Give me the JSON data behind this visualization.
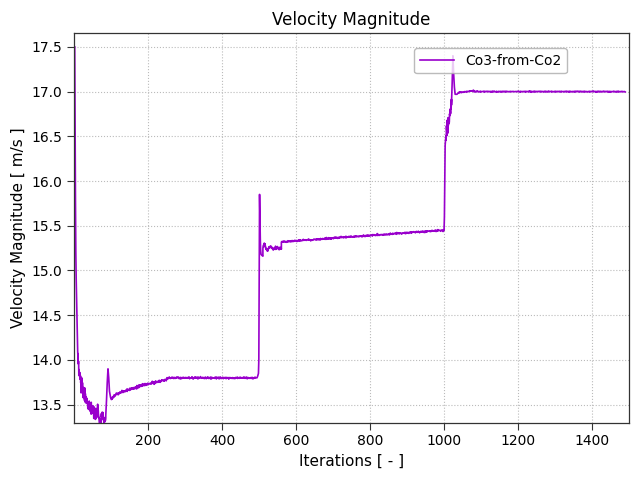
{
  "title": "Velocity Magnitude",
  "xlabel": "Iterations [ - ]",
  "ylabel": "Velocity Magnitude [ m/s ]",
  "legend_label": "Co3-from-Co2",
  "line_color": "#9900cc",
  "xlim": [
    0,
    1500
  ],
  "ylim": [
    13.3,
    17.65
  ],
  "xticks": [
    200,
    400,
    600,
    800,
    1000,
    1200,
    1400
  ],
  "yticks": [
    13.5,
    14.0,
    14.5,
    15.0,
    15.5,
    16.0,
    16.5,
    17.0,
    17.5
  ],
  "grid_color": "#bbbbbb",
  "background_color": "#ffffff",
  "linewidth": 1.2
}
